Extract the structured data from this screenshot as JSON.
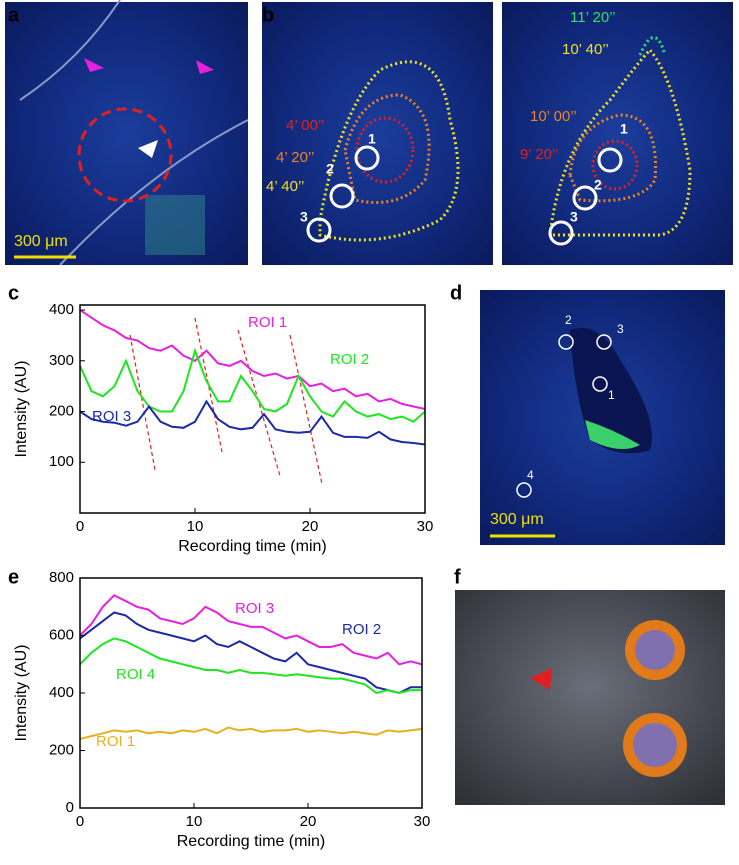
{
  "panel_labels": [
    "a",
    "b",
    "c",
    "d",
    "e",
    "f"
  ],
  "panel_a": {
    "scale_bar": "300 μm"
  },
  "panel_b": {
    "left": {
      "times": [
        "4’ 00’’",
        "4’ 20’’",
        "4’ 40’’"
      ],
      "rois": [
        "1",
        "2",
        "3"
      ]
    },
    "right": {
      "times": [
        "11’ 20’’",
        "10’ 40’’",
        "10’ 00’’",
        "9’ 20’’"
      ],
      "rois": [
        "1",
        "2",
        "3"
      ]
    }
  },
  "panel_d": {
    "scale_bar": "300 μm",
    "rois": [
      "1",
      "2",
      "3",
      "4"
    ]
  },
  "chart_data": [
    {
      "type": "line",
      "xlabel": "Recording time (min)",
      "ylabel": "Intensity (AU)",
      "x": [
        0,
        1,
        2,
        3,
        4,
        5,
        6,
        7,
        8,
        9,
        10,
        11,
        12,
        13,
        14,
        15,
        16,
        17,
        18,
        19,
        20,
        21,
        22,
        23,
        24,
        25,
        26,
        27,
        28,
        29,
        30
      ],
      "xlim": [
        0,
        30
      ],
      "xticks": [
        0,
        10,
        20,
        30
      ],
      "ylim": [
        0,
        410
      ],
      "yticks": [
        100,
        200,
        300,
        400
      ],
      "series": [
        {
          "name": "ROI 1",
          "color": "#e81ee0",
          "values": [
            400,
            385,
            370,
            360,
            345,
            340,
            325,
            320,
            330,
            310,
            300,
            320,
            295,
            290,
            300,
            280,
            270,
            275,
            265,
            270,
            250,
            255,
            240,
            245,
            230,
            235,
            220,
            225,
            215,
            210,
            205
          ]
        },
        {
          "name": "ROI 2",
          "color": "#1ee61e",
          "values": [
            290,
            240,
            230,
            250,
            300,
            240,
            210,
            200,
            200,
            240,
            320,
            260,
            220,
            220,
            270,
            240,
            205,
            200,
            215,
            270,
            230,
            200,
            190,
            220,
            200,
            190,
            195,
            185,
            190,
            180,
            200
          ]
        },
        {
          "name": "ROI 3",
          "color": "#1a2aa8",
          "values": [
            200,
            185,
            180,
            178,
            172,
            180,
            210,
            180,
            170,
            168,
            180,
            220,
            185,
            170,
            165,
            168,
            195,
            165,
            160,
            158,
            160,
            190,
            158,
            150,
            150,
            148,
            160,
            145,
            140,
            138,
            135
          ]
        }
      ]
    },
    {
      "type": "line",
      "xlabel": "Recording time (min)",
      "ylabel": "Intensity (AU)",
      "x": [
        0,
        1,
        2,
        3,
        4,
        5,
        6,
        7,
        8,
        9,
        10,
        11,
        12,
        13,
        14,
        15,
        16,
        17,
        18,
        19,
        20,
        21,
        22,
        23,
        24,
        25,
        26,
        27,
        28,
        29,
        30
      ],
      "xlim": [
        0,
        30
      ],
      "xticks": [
        0,
        10,
        20,
        30
      ],
      "ylim": [
        0,
        800
      ],
      "yticks": [
        0,
        200,
        400,
        600,
        800
      ],
      "series": [
        {
          "name": "ROI 3",
          "color": "#e81ee0",
          "values": [
            600,
            640,
            700,
            740,
            720,
            700,
            690,
            660,
            650,
            640,
            660,
            700,
            680,
            650,
            640,
            630,
            630,
            610,
            590,
            600,
            580,
            560,
            560,
            570,
            540,
            530,
            520,
            540,
            500,
            510,
            500
          ]
        },
        {
          "name": "ROI 2",
          "color": "#1a2aa8",
          "values": [
            590,
            620,
            650,
            680,
            670,
            640,
            620,
            610,
            600,
            590,
            580,
            600,
            570,
            560,
            580,
            560,
            540,
            520,
            510,
            540,
            500,
            490,
            480,
            470,
            460,
            450,
            420,
            410,
            400,
            420,
            420
          ]
        },
        {
          "name": "ROI 4",
          "color": "#1ee61e",
          "values": [
            500,
            540,
            570,
            590,
            580,
            560,
            540,
            520,
            510,
            500,
            490,
            480,
            480,
            470,
            480,
            470,
            470,
            465,
            460,
            465,
            460,
            455,
            450,
            450,
            440,
            430,
            400,
            410,
            400,
            410,
            410
          ]
        },
        {
          "name": "ROI 1",
          "color": "#e8b020",
          "values": [
            240,
            250,
            260,
            270,
            265,
            270,
            260,
            265,
            260,
            270,
            265,
            275,
            260,
            280,
            270,
            275,
            265,
            270,
            270,
            275,
            265,
            270,
            265,
            260,
            265,
            260,
            255,
            270,
            265,
            270,
            275
          ]
        }
      ]
    }
  ]
}
